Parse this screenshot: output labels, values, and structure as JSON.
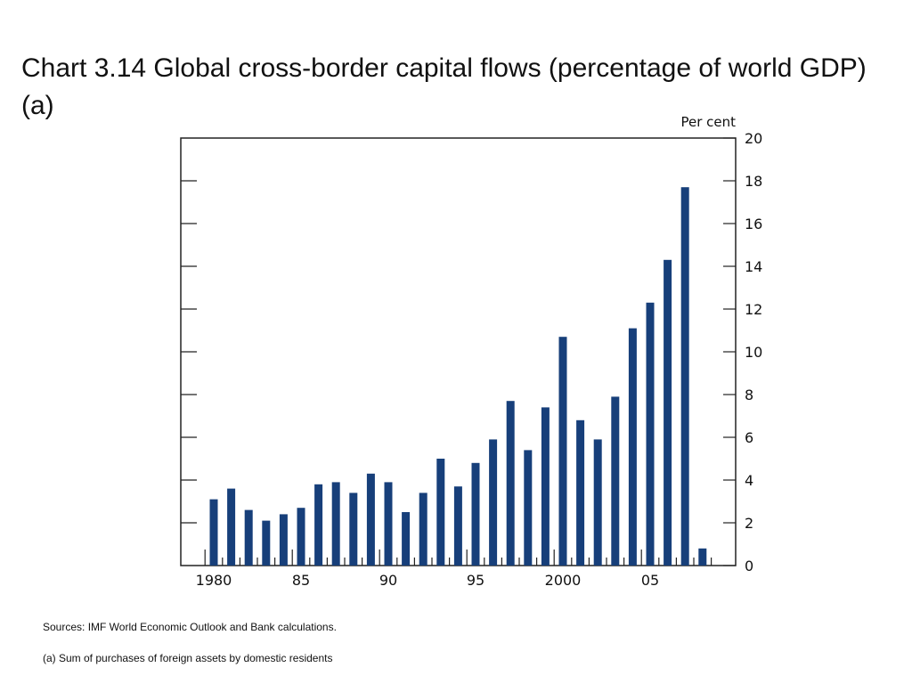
{
  "title": "Chart 3.14  Global cross-border capital flows (percentage of world GDP)(a)",
  "sources": "Sources:  IMF World Economic Outlook and Bank calculations.",
  "footnote": "(a) Sum of purchases of foreign assets by domestic residents",
  "colors": {
    "bar": "#173f7a",
    "axis": "#222222"
  },
  "chart_data": {
    "type": "bar",
    "title": "Chart 3.14  Global cross-border capital flows (percentage of world GDP)(a)",
    "ylabel": "Per cent",
    "xlabel": "",
    "ylim": [
      0,
      20
    ],
    "yticks": [
      0,
      2,
      4,
      6,
      8,
      10,
      12,
      14,
      16,
      18,
      20
    ],
    "xtick_labels": [
      {
        "year": 1980,
        "label": "1980"
      },
      {
        "year": 1985,
        "label": "85"
      },
      {
        "year": 1990,
        "label": "90"
      },
      {
        "year": 1995,
        "label": "95"
      },
      {
        "year": 2000,
        "label": "2000"
      },
      {
        "year": 2005,
        "label": "05"
      }
    ],
    "categories": [
      1980,
      1981,
      1982,
      1983,
      1984,
      1985,
      1986,
      1987,
      1988,
      1989,
      1990,
      1991,
      1992,
      1993,
      1994,
      1995,
      1996,
      1997,
      1998,
      1999,
      2000,
      2001,
      2002,
      2003,
      2004,
      2005,
      2006,
      2007,
      2008
    ],
    "values": [
      3.1,
      3.6,
      2.6,
      2.1,
      2.4,
      2.7,
      3.8,
      3.9,
      3.4,
      4.3,
      3.9,
      2.5,
      3.4,
      5.0,
      3.7,
      4.8,
      5.9,
      7.7,
      5.4,
      7.4,
      10.7,
      6.8,
      5.9,
      7.9,
      11.1,
      12.3,
      14.3,
      17.7,
      0.8
    ],
    "grid": false,
    "y_axis_side": "both"
  }
}
